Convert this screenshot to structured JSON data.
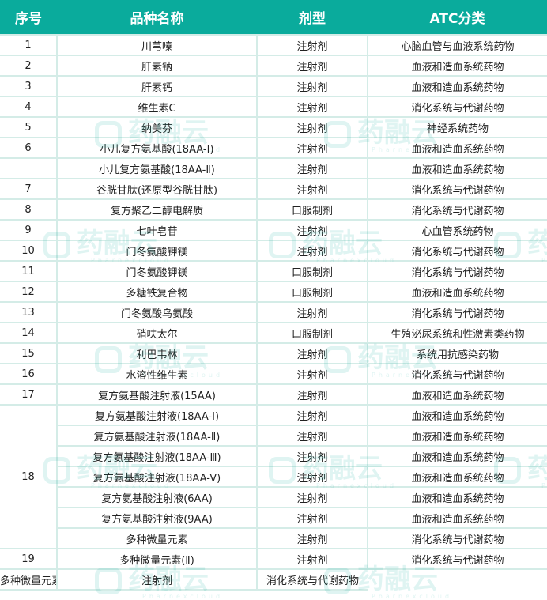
{
  "header": {
    "seq": "序号",
    "name": "品种名称",
    "form": "剂型",
    "atc": "ATC分类"
  },
  "watermark": {
    "text": "药融云",
    "sub": "Pharnexcloud"
  },
  "rows": [
    {
      "seq": "1",
      "name": "川芎嗪",
      "form": "注射剂",
      "atc": "心脑血管与血液系统药物"
    },
    {
      "seq": "2",
      "name": "肝素钠",
      "form": "注射剂",
      "atc": "血液和造血系统药物"
    },
    {
      "seq": "3",
      "name": "肝素钙",
      "form": "注射剂",
      "atc": "血液和造血系统药物"
    },
    {
      "seq": "4",
      "name": "维生素C",
      "form": "注射剂",
      "atc": "消化系统与代谢药物"
    },
    {
      "seq": "5",
      "name": "纳美芬",
      "form": "注射剂",
      "atc": "神经系统药物"
    },
    {
      "seq": "6",
      "name": "小儿复方氨基酸(18AA-I)",
      "form": "注射剂",
      "atc": "血液和造血系统药物"
    },
    {
      "seq": "",
      "name": "小儿复方氨基酸(18AA-Ⅱ)",
      "form": "注射剂",
      "atc": "血液和造血系统药物"
    },
    {
      "seq": "7",
      "name": "谷胱甘肽(还原型谷胱甘肽)",
      "form": "注射剂",
      "atc": "消化系统与代谢药物"
    },
    {
      "seq": "8",
      "name": "复方聚乙二醇电解质",
      "form": "口服制剂",
      "atc": "消化系统与代谢药物"
    },
    {
      "seq": "9",
      "name": "七叶皂苷",
      "form": "注射剂",
      "atc": "心血管系统药物"
    },
    {
      "seq": "10",
      "name": "门冬氨酸钾镁",
      "form": "注射剂",
      "atc": "消化系统与代谢药物"
    },
    {
      "seq": "11",
      "name": "门冬氨酸钾镁",
      "form": "口服制剂",
      "atc": "消化系统与代谢药物"
    },
    {
      "seq": "12",
      "name": "多糖铁复合物",
      "form": "口服制剂",
      "atc": "血液和造血系统药物"
    },
    {
      "seq": "13",
      "name": "门冬氨酸鸟氨酸",
      "form": "注射剂",
      "atc": "消化系统与代谢药物"
    },
    {
      "seq": "14",
      "name": "硝呋太尔",
      "form": "口服制剂",
      "atc": "生殖泌尿系统和性激素类药物"
    },
    {
      "seq": "15",
      "name": "利巴韦林",
      "form": "注射剂",
      "atc": "系统用抗感染药物"
    },
    {
      "seq": "16",
      "name": "水溶性维生素",
      "form": "注射剂",
      "atc": "消化系统与代谢药物"
    },
    {
      "seq": "17",
      "name": "复方氨基酸注射液(15AA)",
      "form": "注射剂",
      "atc": "血液和造血系统药物"
    },
    {
      "seq": "18",
      "name": "复方氨基酸注射液(18AA-I)",
      "form": "注射剂",
      "atc": "血液和造血系统药物"
    },
    {
      "name": "复方氨基酸注射液(18AA-Ⅱ)",
      "form": "注射剂",
      "atc": "血液和造血系统药物"
    },
    {
      "name": "复方氨基酸注射液(18AA-Ⅲ)",
      "form": "注射剂",
      "atc": "血液和造血系统药物"
    },
    {
      "name": "复方氨基酸注射液(18AA-V)",
      "form": "注射剂",
      "atc": "血液和造血系统药物"
    },
    {
      "name": "复方氨基酸注射液(6AA)",
      "form": "注射剂",
      "atc": "血液和造血系统药物"
    },
    {
      "name": "复方氨基酸注射液(9AA)",
      "form": "注射剂",
      "atc": "血液和造血系统药物"
    },
    {
      "name": "多种微量元素",
      "form": "注射剂",
      "atc": "消化系统与代谢药物"
    },
    {
      "seq": "19",
      "name": "多种微量元素(Ⅱ)",
      "form": "注射剂",
      "atc": "消化系统与代谢药物"
    },
    {
      "name": "多种微量元素(I)",
      "form": "注射剂",
      "atc": "消化系统与代谢药物"
    }
  ]
}
